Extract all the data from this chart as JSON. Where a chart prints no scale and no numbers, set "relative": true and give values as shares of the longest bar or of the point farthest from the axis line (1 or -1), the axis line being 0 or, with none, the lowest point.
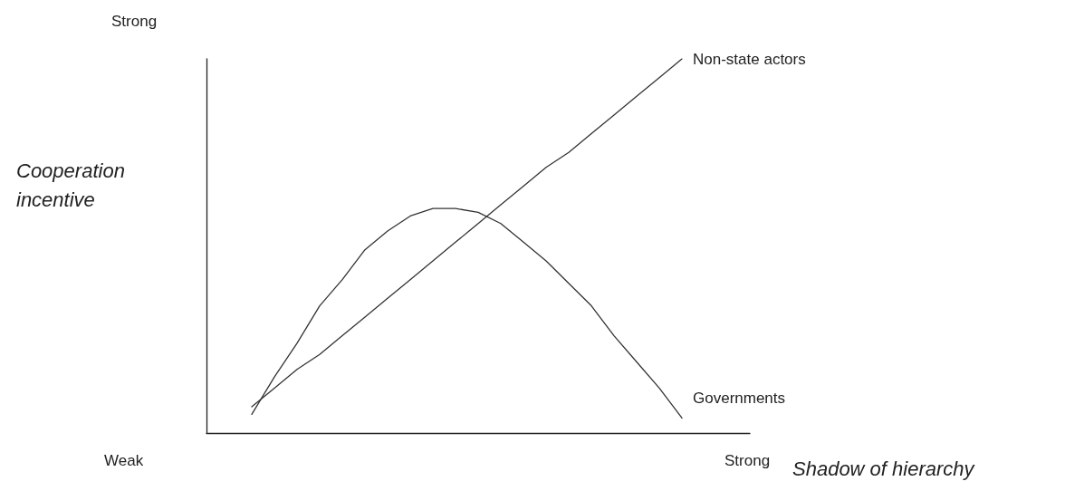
{
  "chart_data": {
    "type": "line",
    "relative": true,
    "xlabel": "Shadow of hierarchy",
    "ylabel": "Cooperation incentive",
    "categories": [
      null,
      null,
      null,
      null,
      null,
      null,
      null,
      null,
      null,
      null,
      null,
      null,
      null,
      null,
      null,
      null,
      null,
      null,
      null,
      null,
      null,
      null,
      null,
      null,
      null
    ],
    "series": [
      {
        "name": "Non-state actors",
        "color": "#333333",
        "values": [
          null,
          null,
          0.07,
          0.12,
          0.17,
          0.21,
          0.26,
          0.31,
          0.36,
          0.41,
          0.46,
          0.51,
          0.56,
          0.61,
          0.66,
          0.71,
          0.75,
          0.8,
          0.85,
          0.9,
          0.95,
          1.0,
          null,
          null,
          null
        ]
      },
      {
        "name": "Governments",
        "color": "#333333",
        "values": [
          null,
          null,
          0.05,
          0.15,
          0.24,
          0.34,
          0.41,
          0.49,
          0.54,
          0.58,
          0.6,
          0.6,
          0.59,
          0.56,
          0.51,
          0.46,
          0.4,
          0.34,
          0.26,
          0.19,
          0.12,
          0.04,
          null,
          null,
          null
        ]
      }
    ],
    "annotations": [
      "Strong",
      "Weak",
      "Strong"
    ],
    "marker": "none",
    "line_style": "solid",
    "grid": false,
    "legend": false
  }
}
